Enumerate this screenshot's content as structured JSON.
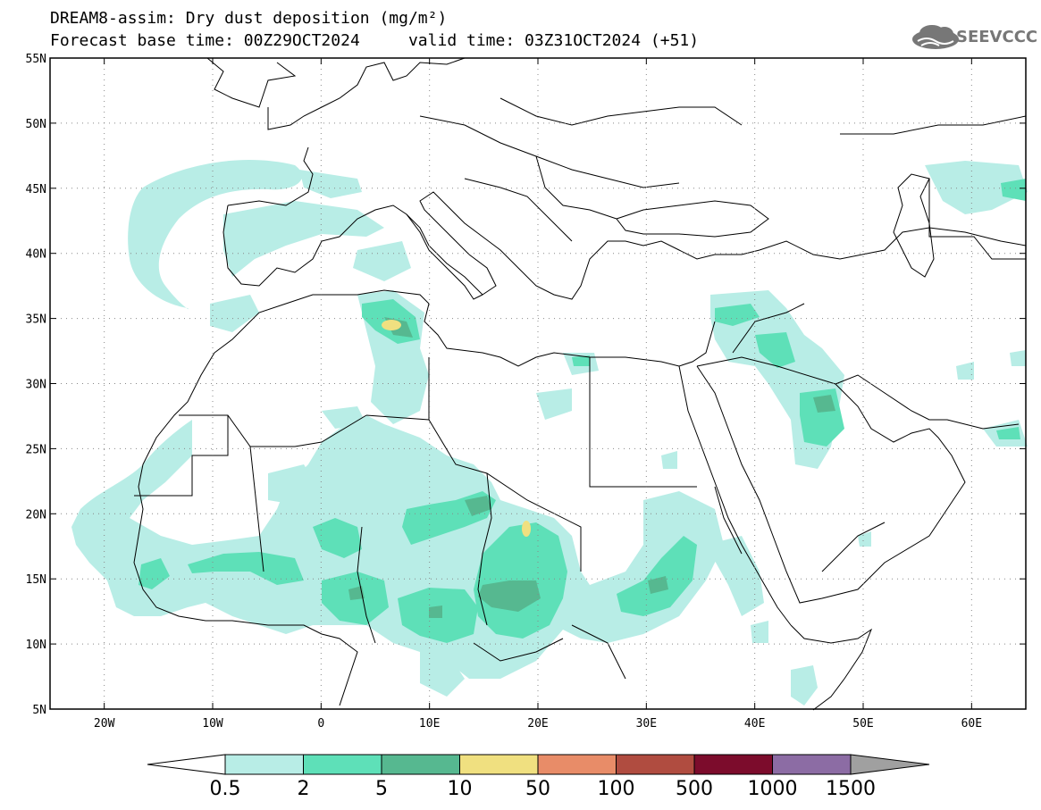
{
  "header": {
    "title_line1": "DREAM8-assim: Dry dust deposition (mg/m²)",
    "title_line2": "Forecast base time: 00Z29OCT2024     valid time: 03Z31OCT2024 (+51)",
    "logo_text": "SEEVCCC"
  },
  "map": {
    "lon_range": [
      -25,
      65
    ],
    "lat_range": [
      5,
      55
    ],
    "lat_labels": [
      "55N",
      "50N",
      "45N",
      "40N",
      "35N",
      "30N",
      "25N",
      "20N",
      "15N",
      "10N",
      "5N"
    ],
    "lon_labels": [
      "20W",
      "10W",
      "0",
      "10E",
      "20E",
      "30E",
      "40E",
      "50E",
      "60E"
    ],
    "grid": "dotted"
  },
  "legend": {
    "levels": [
      "0.5",
      "2",
      "5",
      "10",
      "50",
      "100",
      "500",
      "1000",
      "1500"
    ],
    "colors": [
      "#b8ede6",
      "#5ee0b8",
      "#56b890",
      "#f0e080",
      "#e88c68",
      "#b04c40",
      "#7c0c2c",
      "#8c6ca4"
    ],
    "under_color": "#ffffff",
    "over_color": "#a0a0a0"
  }
}
